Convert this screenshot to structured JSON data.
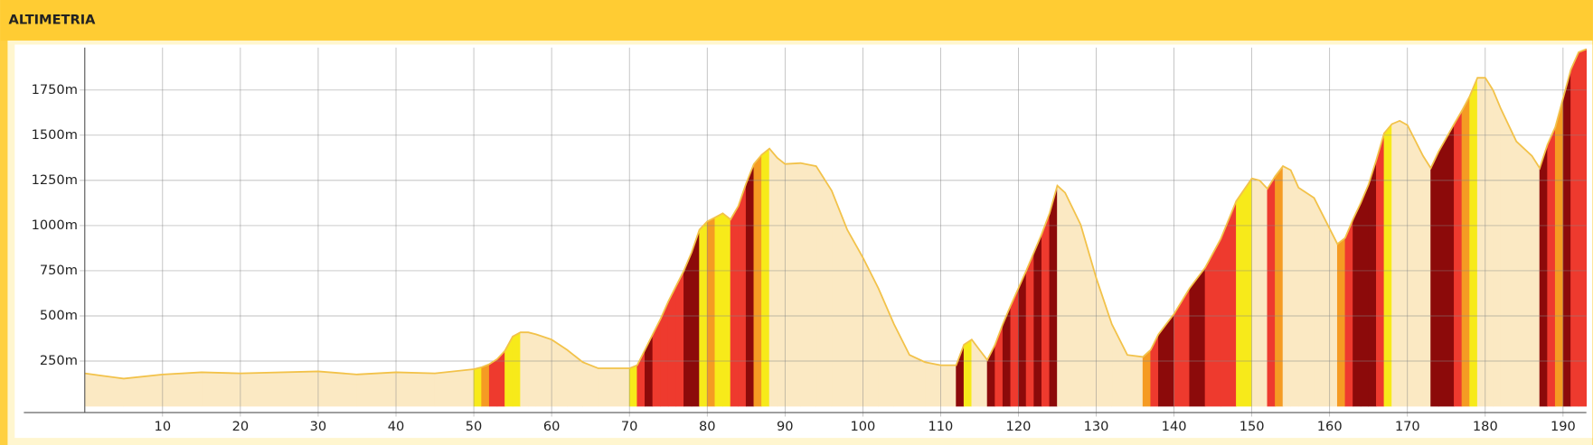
{
  "chart_data": {
    "type": "elevation",
    "title": "ALTIMETRIA",
    "xlim": [
      0,
      193
    ],
    "ylim": [
      -35,
      1985
    ],
    "xticks": [
      10,
      20,
      30,
      40,
      50,
      60,
      70,
      80,
      90,
      100,
      110,
      120,
      130,
      140,
      150,
      160,
      170,
      180,
      190
    ],
    "yticks": [
      {
        "value": 250,
        "label": "250m"
      },
      {
        "value": 500,
        "label": "500m"
      },
      {
        "value": 750,
        "label": "750m"
      },
      {
        "value": 1000,
        "label": "1000m"
      },
      {
        "value": 1250,
        "label": "1250m"
      },
      {
        "value": 1500,
        "label": "1500m"
      },
      {
        "value": 1750,
        "label": "1750m"
      }
    ],
    "grid": true,
    "x": [
      0,
      2,
      5,
      10,
      15,
      20,
      30,
      35,
      40,
      45,
      50,
      51,
      52,
      53,
      54,
      55,
      56,
      57,
      58,
      60,
      62,
      64,
      66,
      70,
      71,
      72,
      73,
      74,
      75,
      76,
      77,
      78,
      79,
      80,
      81,
      82,
      83,
      84,
      85,
      86,
      87,
      88,
      89,
      90,
      92,
      94,
      96,
      98,
      100,
      102,
      104,
      106,
      108,
      110,
      112,
      113,
      114,
      115,
      116,
      117,
      118,
      119,
      120,
      121,
      122,
      123,
      124,
      125,
      126,
      128,
      130,
      132,
      134,
      136,
      137,
      138,
      140,
      142,
      144,
      146,
      148,
      150,
      151,
      152,
      153,
      154,
      155,
      156,
      158,
      160,
      161,
      162,
      163,
      164,
      165,
      166,
      167,
      168,
      169,
      170,
      172,
      173,
      174,
      176,
      177,
      178,
      179,
      180,
      181,
      182,
      184,
      186,
      187,
      188,
      189,
      190,
      191,
      192,
      193
    ],
    "series": [
      {
        "color": "#f2c24a",
        "values": [
          182,
          170,
          153,
          176,
          188,
          182,
          193,
          176,
          188,
          182,
          205,
          216,
          233,
          261,
          307,
          386,
          409,
          409,
          398,
          369,
          312,
          244,
          210,
          210,
          227,
          312,
          398,
          483,
          580,
          665,
          750,
          852,
          977,
          1023,
          1045,
          1068,
          1034,
          1108,
          1233,
          1341,
          1392,
          1426,
          1375,
          1341,
          1346,
          1329,
          1193,
          977,
          824,
          653,
          455,
          284,
          244,
          227,
          227,
          341,
          369,
          312,
          256,
          341,
          455,
          557,
          653,
          750,
          852,
          954,
          1068,
          1221,
          1182,
          1005,
          710,
          455,
          284,
          273,
          312,
          398,
          511,
          653,
          767,
          926,
          1136,
          1261,
          1250,
          1204,
          1273,
          1329,
          1307,
          1210,
          1153,
          983,
          898,
          932,
          1034,
          1125,
          1227,
          1363,
          1511,
          1562,
          1580,
          1556,
          1386,
          1318,
          1409,
          1562,
          1636,
          1716,
          1818,
          1818,
          1750,
          1647,
          1466,
          1386,
          1318,
          1449,
          1545,
          1704,
          1863,
          1960,
          1977
        ],
        "segment_colors": [
          "#fbe9c3",
          "#fbe9c3",
          "#fbe9c3",
          "#fbe9c3",
          "#fbe9c3",
          "#fbe9c3",
          "#fbe9c3",
          "#fbe9c3",
          "#fbe9c3",
          "#fbe9c3",
          "#f7ea1a",
          "#f59b23",
          "#ee3a2e",
          "#ee3a2e",
          "#f7ea1a",
          "#f7ea1a",
          "#fbe9c3",
          "#fbe9c3",
          "#fbe9c3",
          "#fbe9c3",
          "#fbe9c3",
          "#fbe9c3",
          "#fbe9c3",
          "#f7ea1a",
          "#ee3a2e",
          "#8c0a0a",
          "#ee3a2e",
          "#ee3a2e",
          "#ee3a2e",
          "#ee3a2e",
          "#8c0a0a",
          "#8c0a0a",
          "#f7ea1a",
          "#f59b23",
          "#f7ea1a",
          "#f7ea1a",
          "#ee3a2e",
          "#ee3a2e",
          "#8c0a0a",
          "#f59b23",
          "#f7ea1a",
          "#fbe9c3",
          "#fbe9c3",
          "#fbe9c3",
          "#fbe9c3",
          "#fbe9c3",
          "#fbe9c3",
          "#fbe9c3",
          "#fbe9c3",
          "#fbe9c3",
          "#fbe9c3",
          "#fbe9c3",
          "#fbe9c3",
          "#fbe9c3",
          "#8c0a0a",
          "#f7ea1a",
          "#fbe9c3",
          "#fbe9c3",
          "#8c0a0a",
          "#ee3a2e",
          "#8c0a0a",
          "#ee3a2e",
          "#8c0a0a",
          "#ee3a2e",
          "#8c0a0a",
          "#ee3a2e",
          "#8c0a0a",
          "#fbe9c3",
          "#fbe9c3",
          "#fbe9c3",
          "#fbe9c3",
          "#fbe9c3",
          "#fbe9c3",
          "#f59b23",
          "#ee3a2e",
          "#8c0a0a",
          "#ee3a2e",
          "#8c0a0a",
          "#ee3a2e",
          "#ee3a2e",
          "#f7ea1a",
          "#fbe9c3",
          "#fbe9c3",
          "#ee3a2e",
          "#f59b23",
          "#fbe9c3",
          "#fbe9c3",
          "#fbe9c3",
          "#fbe9c3",
          "#fbe9c3",
          "#f59b23",
          "#ee3a2e",
          "#8c0a0a",
          "#8c0a0a",
          "#8c0a0a",
          "#ee3a2e",
          "#f7ea1a",
          "#fbe9c3",
          "#fbe9c3",
          "#fbe9c3",
          "#fbe9c3",
          "#8c0a0a",
          "#8c0a0a",
          "#ee3a2e",
          "#f59b23",
          "#f7ea1a",
          "#fbe9c3",
          "#fbe9c3",
          "#fbe9c3",
          "#fbe9c3",
          "#fbe9c3",
          "#fbe9c3",
          "#8c0a0a",
          "#ee3a2e",
          "#f59b23",
          "#8c0a0a",
          "#ee3a2e",
          "#ee3a2e"
        ]
      }
    ]
  }
}
